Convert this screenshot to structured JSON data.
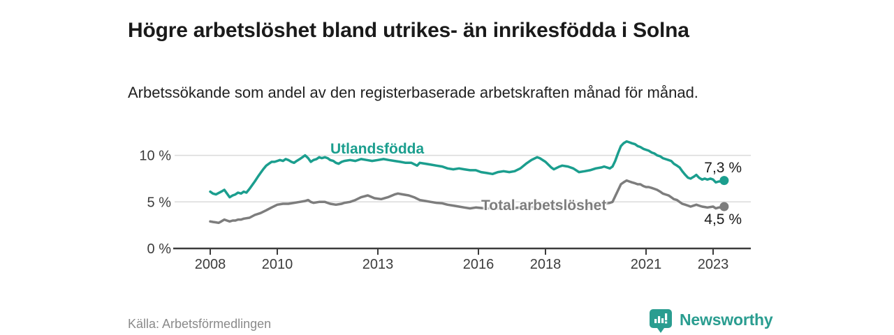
{
  "header": {
    "title": "Högre arbetslöshet bland utrikes- än inrikesfödda i Solna",
    "subtitle": "Arbetssökande som andel av den registerbaserade arbetskraften månad för månad."
  },
  "footer": {
    "source": "Källa: Arbetsförmedlingen",
    "brand_name": "Newsworthy",
    "brand_icon": "bar-chart-speech-bubble-icon"
  },
  "colors": {
    "teal": "#1b9e8e",
    "gray": "#7d7d7d",
    "grid": "#dadada",
    "axis": "#3c3c3c",
    "text_dark": "#1a1a1a",
    "text_muted": "#8a8a8a"
  },
  "chart_data": {
    "type": "line",
    "title": "Högre arbetslöshet bland utrikes- än inrikesfödda i Solna",
    "subtitle": "Arbetssökande som andel av den registerbaserade arbetskraften månad för månad.",
    "xlabel": "",
    "ylabel": "",
    "xlim": [
      2006.9,
      2024.1
    ],
    "ylim": [
      0,
      12.4
    ],
    "grid": "horizontal",
    "legend_position": "inline-labels",
    "y_ticks": [
      {
        "v": 0,
        "label": "0 %"
      },
      {
        "v": 5,
        "label": "5 %"
      },
      {
        "v": 10,
        "label": "10 %"
      }
    ],
    "x_ticks": [
      {
        "v": 2008,
        "label": "2008"
      },
      {
        "v": 2010,
        "label": "2010"
      },
      {
        "v": 2013,
        "label": "2013"
      },
      {
        "v": 2016,
        "label": "2016"
      },
      {
        "v": 2018,
        "label": "2018"
      },
      {
        "v": 2021,
        "label": "2021"
      },
      {
        "v": 2023,
        "label": "2023"
      }
    ],
    "series": [
      {
        "name": "Utlandsfödda",
        "color": "#1b9e8e",
        "end_label": "7,3 %",
        "end_value": 7.3,
        "points": [
          [
            2008.0,
            6.1
          ],
          [
            2008.08,
            5.9
          ],
          [
            2008.17,
            5.8
          ],
          [
            2008.33,
            6.1
          ],
          [
            2008.42,
            6.3
          ],
          [
            2008.5,
            5.9
          ],
          [
            2008.58,
            5.5
          ],
          [
            2008.67,
            5.7
          ],
          [
            2008.75,
            5.8
          ],
          [
            2008.83,
            6.0
          ],
          [
            2008.92,
            5.9
          ],
          [
            2009.0,
            6.1
          ],
          [
            2009.08,
            6.0
          ],
          [
            2009.17,
            6.4
          ],
          [
            2009.25,
            6.8
          ],
          [
            2009.33,
            7.2
          ],
          [
            2009.42,
            7.7
          ],
          [
            2009.5,
            8.1
          ],
          [
            2009.58,
            8.5
          ],
          [
            2009.67,
            8.9
          ],
          [
            2009.75,
            9.1
          ],
          [
            2009.83,
            9.3
          ],
          [
            2009.92,
            9.3
          ],
          [
            2010.0,
            9.4
          ],
          [
            2010.08,
            9.5
          ],
          [
            2010.17,
            9.4
          ],
          [
            2010.25,
            9.6
          ],
          [
            2010.33,
            9.5
          ],
          [
            2010.42,
            9.3
          ],
          [
            2010.5,
            9.2
          ],
          [
            2010.58,
            9.4
          ],
          [
            2010.67,
            9.6
          ],
          [
            2010.75,
            9.8
          ],
          [
            2010.83,
            10.0
          ],
          [
            2010.92,
            9.7
          ],
          [
            2011.0,
            9.3
          ],
          [
            2011.08,
            9.5
          ],
          [
            2011.17,
            9.6
          ],
          [
            2011.25,
            9.8
          ],
          [
            2011.33,
            9.7
          ],
          [
            2011.42,
            9.8
          ],
          [
            2011.5,
            9.7
          ],
          [
            2011.58,
            9.5
          ],
          [
            2011.67,
            9.4
          ],
          [
            2011.75,
            9.2
          ],
          [
            2011.83,
            9.1
          ],
          [
            2011.92,
            9.3
          ],
          [
            2012.0,
            9.4
          ],
          [
            2012.17,
            9.5
          ],
          [
            2012.33,
            9.4
          ],
          [
            2012.5,
            9.6
          ],
          [
            2012.67,
            9.5
          ],
          [
            2012.83,
            9.4
          ],
          [
            2013.0,
            9.5
          ],
          [
            2013.17,
            9.6
          ],
          [
            2013.33,
            9.5
          ],
          [
            2013.5,
            9.4
          ],
          [
            2013.67,
            9.3
          ],
          [
            2013.83,
            9.2
          ],
          [
            2014.0,
            9.2
          ],
          [
            2014.17,
            8.9
          ],
          [
            2014.25,
            9.2
          ],
          [
            2014.42,
            9.1
          ],
          [
            2014.58,
            9.0
          ],
          [
            2014.75,
            8.9
          ],
          [
            2014.92,
            8.8
          ],
          [
            2015.08,
            8.6
          ],
          [
            2015.25,
            8.5
          ],
          [
            2015.42,
            8.6
          ],
          [
            2015.58,
            8.5
          ],
          [
            2015.75,
            8.4
          ],
          [
            2015.92,
            8.4
          ],
          [
            2016.08,
            8.2
          ],
          [
            2016.25,
            8.1
          ],
          [
            2016.42,
            8.0
          ],
          [
            2016.58,
            8.2
          ],
          [
            2016.75,
            8.3
          ],
          [
            2016.92,
            8.2
          ],
          [
            2017.08,
            8.3
          ],
          [
            2017.25,
            8.6
          ],
          [
            2017.42,
            9.1
          ],
          [
            2017.58,
            9.5
          ],
          [
            2017.75,
            9.8
          ],
          [
            2017.83,
            9.7
          ],
          [
            2018.0,
            9.3
          ],
          [
            2018.17,
            8.7
          ],
          [
            2018.25,
            8.5
          ],
          [
            2018.42,
            8.8
          ],
          [
            2018.5,
            8.9
          ],
          [
            2018.67,
            8.8
          ],
          [
            2018.83,
            8.6
          ],
          [
            2019.0,
            8.2
          ],
          [
            2019.17,
            8.3
          ],
          [
            2019.33,
            8.4
          ],
          [
            2019.5,
            8.6
          ],
          [
            2019.67,
            8.7
          ],
          [
            2019.75,
            8.8
          ],
          [
            2019.92,
            8.6
          ],
          [
            2020.0,
            8.8
          ],
          [
            2020.08,
            9.4
          ],
          [
            2020.17,
            10.3
          ],
          [
            2020.25,
            11.0
          ],
          [
            2020.33,
            11.3
          ],
          [
            2020.42,
            11.5
          ],
          [
            2020.5,
            11.4
          ],
          [
            2020.58,
            11.3
          ],
          [
            2020.67,
            11.2
          ],
          [
            2020.75,
            11.0
          ],
          [
            2020.83,
            10.9
          ],
          [
            2020.92,
            10.7
          ],
          [
            2021.0,
            10.6
          ],
          [
            2021.08,
            10.5
          ],
          [
            2021.17,
            10.3
          ],
          [
            2021.25,
            10.2
          ],
          [
            2021.33,
            10.0
          ],
          [
            2021.42,
            9.9
          ],
          [
            2021.5,
            9.7
          ],
          [
            2021.58,
            9.6
          ],
          [
            2021.67,
            9.5
          ],
          [
            2021.75,
            9.4
          ],
          [
            2021.83,
            9.1
          ],
          [
            2021.92,
            8.9
          ],
          [
            2022.0,
            8.7
          ],
          [
            2022.08,
            8.3
          ],
          [
            2022.17,
            7.9
          ],
          [
            2022.25,
            7.6
          ],
          [
            2022.33,
            7.5
          ],
          [
            2022.42,
            7.7
          ],
          [
            2022.5,
            7.9
          ],
          [
            2022.58,
            7.6
          ],
          [
            2022.67,
            7.4
          ],
          [
            2022.75,
            7.5
          ],
          [
            2022.83,
            7.4
          ],
          [
            2022.92,
            7.5
          ],
          [
            2023.0,
            7.4
          ],
          [
            2023.08,
            7.1
          ],
          [
            2023.17,
            7.2
          ],
          [
            2023.25,
            7.2
          ],
          [
            2023.33,
            7.3
          ]
        ]
      },
      {
        "name": "Total arbetslöshet",
        "color": "#7d7d7d",
        "end_label": "4,5 %",
        "end_value": 4.5,
        "points": [
          [
            2008.0,
            2.9
          ],
          [
            2008.08,
            2.85
          ],
          [
            2008.17,
            2.8
          ],
          [
            2008.25,
            2.75
          ],
          [
            2008.33,
            2.9
          ],
          [
            2008.42,
            3.1
          ],
          [
            2008.5,
            3.0
          ],
          [
            2008.58,
            2.9
          ],
          [
            2008.67,
            3.0
          ],
          [
            2008.75,
            3.0
          ],
          [
            2008.83,
            3.1
          ],
          [
            2008.92,
            3.1
          ],
          [
            2009.0,
            3.2
          ],
          [
            2009.17,
            3.3
          ],
          [
            2009.33,
            3.6
          ],
          [
            2009.5,
            3.8
          ],
          [
            2009.67,
            4.1
          ],
          [
            2009.83,
            4.4
          ],
          [
            2010.0,
            4.7
          ],
          [
            2010.17,
            4.8
          ],
          [
            2010.33,
            4.8
          ],
          [
            2010.5,
            4.9
          ],
          [
            2010.67,
            5.0
          ],
          [
            2010.83,
            5.1
          ],
          [
            2010.92,
            5.2
          ],
          [
            2011.0,
            5.0
          ],
          [
            2011.08,
            4.9
          ],
          [
            2011.25,
            5.0
          ],
          [
            2011.42,
            5.0
          ],
          [
            2011.58,
            4.8
          ],
          [
            2011.75,
            4.7
          ],
          [
            2011.92,
            4.8
          ],
          [
            2012.0,
            4.9
          ],
          [
            2012.17,
            5.0
          ],
          [
            2012.33,
            5.2
          ],
          [
            2012.5,
            5.5
          ],
          [
            2012.7,
            5.7
          ],
          [
            2012.9,
            5.4
          ],
          [
            2013.1,
            5.3
          ],
          [
            2013.3,
            5.5
          ],
          [
            2013.5,
            5.8
          ],
          [
            2013.6,
            5.9
          ],
          [
            2013.75,
            5.8
          ],
          [
            2013.92,
            5.7
          ],
          [
            2014.08,
            5.5
          ],
          [
            2014.25,
            5.2
          ],
          [
            2014.42,
            5.1
          ],
          [
            2014.58,
            5.0
          ],
          [
            2014.75,
            4.9
          ],
          [
            2014.92,
            4.85
          ],
          [
            2015.08,
            4.7
          ],
          [
            2015.25,
            4.6
          ],
          [
            2015.42,
            4.5
          ],
          [
            2015.58,
            4.4
          ],
          [
            2015.75,
            4.3
          ],
          [
            2015.92,
            4.4
          ],
          [
            2016.08,
            4.35
          ],
          [
            2016.25,
            4.3
          ],
          [
            2016.42,
            4.4
          ],
          [
            2016.58,
            4.3
          ],
          [
            2016.75,
            4.35
          ],
          [
            2016.92,
            4.3
          ],
          [
            2017.08,
            4.35
          ],
          [
            2017.25,
            4.4
          ],
          [
            2017.42,
            4.5
          ],
          [
            2017.58,
            4.45
          ],
          [
            2017.75,
            4.4
          ],
          [
            2017.92,
            4.35
          ],
          [
            2018.08,
            4.4
          ],
          [
            2018.25,
            4.45
          ],
          [
            2018.42,
            4.5
          ],
          [
            2018.58,
            4.45
          ],
          [
            2018.75,
            4.4
          ],
          [
            2018.92,
            4.45
          ],
          [
            2019.08,
            4.5
          ],
          [
            2019.25,
            4.5
          ],
          [
            2019.42,
            4.6
          ],
          [
            2019.58,
            4.7
          ],
          [
            2019.75,
            4.8
          ],
          [
            2019.92,
            4.9
          ],
          [
            2020.0,
            5.0
          ],
          [
            2020.08,
            5.6
          ],
          [
            2020.17,
            6.3
          ],
          [
            2020.25,
            6.9
          ],
          [
            2020.33,
            7.1
          ],
          [
            2020.42,
            7.3
          ],
          [
            2020.5,
            7.2
          ],
          [
            2020.58,
            7.1
          ],
          [
            2020.67,
            7.0
          ],
          [
            2020.75,
            6.9
          ],
          [
            2020.83,
            6.9
          ],
          [
            2020.92,
            6.7
          ],
          [
            2021.0,
            6.6
          ],
          [
            2021.08,
            6.6
          ],
          [
            2021.17,
            6.5
          ],
          [
            2021.25,
            6.4
          ],
          [
            2021.33,
            6.3
          ],
          [
            2021.42,
            6.1
          ],
          [
            2021.5,
            5.9
          ],
          [
            2021.58,
            5.8
          ],
          [
            2021.67,
            5.7
          ],
          [
            2021.75,
            5.5
          ],
          [
            2021.83,
            5.3
          ],
          [
            2021.92,
            5.2
          ],
          [
            2022.0,
            5.0
          ],
          [
            2022.08,
            4.8
          ],
          [
            2022.17,
            4.7
          ],
          [
            2022.25,
            4.6
          ],
          [
            2022.33,
            4.5
          ],
          [
            2022.42,
            4.6
          ],
          [
            2022.5,
            4.7
          ],
          [
            2022.58,
            4.6
          ],
          [
            2022.67,
            4.5
          ],
          [
            2022.75,
            4.45
          ],
          [
            2022.83,
            4.4
          ],
          [
            2022.92,
            4.45
          ],
          [
            2023.0,
            4.5
          ],
          [
            2023.08,
            4.3
          ],
          [
            2023.17,
            4.4
          ],
          [
            2023.25,
            4.4
          ],
          [
            2023.33,
            4.5
          ]
        ]
      }
    ]
  }
}
